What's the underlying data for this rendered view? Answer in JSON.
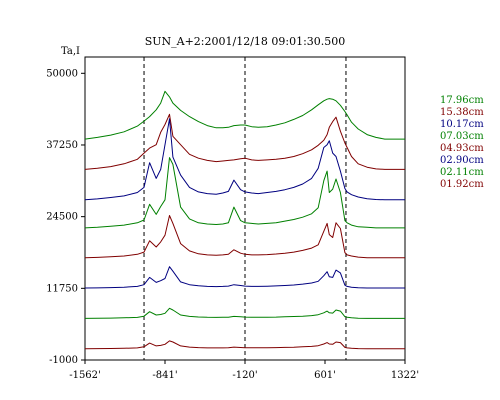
{
  "chart_data": {
    "type": "line",
    "title": "SUN_A+2:2001/12/18 09:01:30.500",
    "ylabel": "Ta,I",
    "xlim": [
      -1562,
      1322
    ],
    "ylim": [
      -1000,
      52900
    ],
    "y_ticks": [
      {
        "label": "50000",
        "value": 50000
      },
      {
        "label": "37250",
        "value": 37250
      },
      {
        "label": "24500",
        "value": 24500
      },
      {
        "label": "11750",
        "value": 11750
      },
      {
        "label": "-1000",
        "value": -1000
      }
    ],
    "x_ticks": [
      {
        "label": "-1562'",
        "value": -1562
      },
      {
        "label": "-841'",
        "value": -841
      },
      {
        "label": "-120'",
        "value": -120
      },
      {
        "label": "601'",
        "value": 601
      },
      {
        "label": "1322'",
        "value": 1322
      }
    ],
    "vertical_markers": [
      -1030,
      -120,
      790
    ],
    "x": [
      -1562,
      -1450,
      -1330,
      -1210,
      -1090,
      -1030,
      -980,
      -920,
      -880,
      -841,
      -800,
      -770,
      -700,
      -620,
      -540,
      -460,
      -380,
      -320,
      -270,
      -220,
      -160,
      -120,
      -60,
      0,
      80,
      160,
      240,
      320,
      400,
      480,
      540,
      590,
      620,
      640,
      670,
      700,
      740,
      780,
      800,
      840,
      900,
      980,
      1060,
      1140,
      1222,
      1322
    ],
    "series": [
      {
        "name": "17.96cm",
        "color": "#008000",
        "offset": 38300,
        "values": [
          0,
          300,
          700,
          1300,
          2300,
          3200,
          4000,
          5200,
          6400,
          8500,
          7500,
          6400,
          5100,
          4000,
          3100,
          2400,
          2000,
          2000,
          2100,
          2400,
          2500,
          2500,
          2200,
          2100,
          2200,
          2500,
          2900,
          3500,
          4200,
          5200,
          6100,
          6800,
          7100,
          7200,
          7100,
          6800,
          6000,
          4900,
          4300,
          3000,
          1800,
          800,
          300,
          0,
          0,
          0
        ]
      },
      {
        "name": "15.38cm",
        "color": "#800000",
        "offset": 32900,
        "values": [
          0,
          200,
          500,
          1000,
          1800,
          2900,
          3800,
          4400,
          6600,
          8000,
          9800,
          5900,
          4400,
          2700,
          2000,
          1600,
          1400,
          1500,
          1600,
          1700,
          1900,
          2000,
          1700,
          1600,
          1700,
          1800,
          2000,
          2300,
          2800,
          3500,
          4300,
          5200,
          6200,
          7500,
          8500,
          9300,
          6800,
          4700,
          3900,
          2300,
          1000,
          400,
          100,
          0,
          0,
          0
        ]
      },
      {
        "name": "10.17cm",
        "color": "#000080",
        "offset": 27500,
        "values": [
          0,
          150,
          400,
          700,
          1300,
          2200,
          6600,
          3800,
          5400,
          9800,
          14400,
          7600,
          4400,
          2200,
          1400,
          1100,
          1000,
          1200,
          1500,
          3500,
          1800,
          1400,
          1200,
          1100,
          1300,
          1500,
          1800,
          2200,
          2800,
          3800,
          5600,
          9300,
          9800,
          10500,
          8300,
          7700,
          5100,
          2000,
          1400,
          900,
          500,
          200,
          50,
          0,
          0,
          0
        ]
      },
      {
        "name": "07.03cm",
        "color": "#008000",
        "offset": 22500,
        "values": [
          0,
          100,
          300,
          500,
          900,
          1400,
          4200,
          2400,
          3800,
          5000,
          12500,
          11300,
          3700,
          1600,
          900,
          700,
          600,
          700,
          900,
          3700,
          1300,
          900,
          800,
          700,
          800,
          900,
          1200,
          1500,
          1900,
          2500,
          3600,
          8400,
          10100,
          6300,
          6900,
          8700,
          6300,
          1300,
          900,
          500,
          200,
          100,
          0,
          0,
          0,
          0
        ]
      },
      {
        "name": "04.93cm",
        "color": "#800000",
        "offset": 17200,
        "values": [
          0,
          50,
          150,
          300,
          600,
          1000,
          3000,
          1900,
          2800,
          4000,
          7500,
          6100,
          2500,
          1200,
          700,
          500,
          450,
          500,
          600,
          1400,
          800,
          600,
          500,
          500,
          550,
          650,
          800,
          1000,
          1300,
          1700,
          2300,
          4700,
          6100,
          4100,
          3600,
          6200,
          5200,
          900,
          500,
          300,
          100,
          0,
          0,
          0,
          0,
          0
        ]
      },
      {
        "name": "02.90cm",
        "color": "#000080",
        "offset": 11800,
        "values": [
          0,
          30,
          80,
          150,
          300,
          600,
          1900,
          1000,
          1300,
          1700,
          3800,
          3000,
          1100,
          600,
          400,
          300,
          250,
          300,
          350,
          600,
          450,
          350,
          300,
          300,
          320,
          380,
          450,
          550,
          700,
          900,
          1200,
          2200,
          2900,
          2000,
          1900,
          3200,
          2700,
          500,
          300,
          150,
          50,
          0,
          0,
          0,
          0,
          0
        ]
      },
      {
        "name": "02.11cm",
        "color": "#008000",
        "offset": 6400,
        "values": [
          0,
          20,
          50,
          100,
          180,
          400,
          1200,
          600,
          700,
          900,
          1800,
          1500,
          600,
          350,
          250,
          200,
          180,
          200,
          220,
          350,
          280,
          230,
          200,
          200,
          210,
          240,
          280,
          330,
          400,
          500,
          650,
          1000,
          1300,
          1000,
          950,
          1500,
          1300,
          300,
          200,
          100,
          30,
          0,
          0,
          0,
          0,
          0
        ]
      },
      {
        "name": "01.92cm",
        "color": "#800000",
        "offset": 1000,
        "values": [
          0,
          20,
          40,
          80,
          150,
          350,
          1000,
          500,
          600,
          800,
          1400,
          1200,
          500,
          300,
          200,
          160,
          150,
          160,
          180,
          300,
          230,
          190,
          170,
          170,
          180,
          200,
          240,
          280,
          340,
          420,
          550,
          850,
          1100,
          850,
          800,
          1200,
          1100,
          250,
          150,
          80,
          20,
          0,
          0,
          0,
          0,
          0
        ]
      }
    ]
  }
}
